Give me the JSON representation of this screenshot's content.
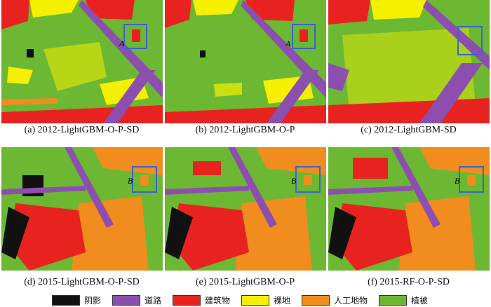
{
  "colors": {
    "shadow": "#111111",
    "road": "#8c4fb0",
    "building": "#e8231f",
    "bare": "#f5f000",
    "artificial": "#f08d1e",
    "vegetation": "#6cb832",
    "box": "#3b64c8"
  },
  "panels": [
    {
      "caption": "(a) 2012-LightGBM-O-P-SD",
      "marker": "A",
      "year": "2012"
    },
    {
      "caption": "(b) 2012-LightGBM-O-P",
      "marker": "A",
      "year": "2012"
    },
    {
      "caption": "(c) 2012-LightGBM-SD",
      "marker": "",
      "year": "2012"
    },
    {
      "caption": "(d) 2015-LightGBM-O-P-SD",
      "marker": "B",
      "year": "2015"
    },
    {
      "caption": "(e) 2015-LightGBM-O-P",
      "marker": "B",
      "year": "2015"
    },
    {
      "caption": "(f) 2015-RF-O-P-SD",
      "marker": "B",
      "year": "2015"
    }
  ],
  "legend": [
    {
      "label": "阴影",
      "color": "#111111"
    },
    {
      "label": "道路",
      "color": "#8c4fb0"
    },
    {
      "label": "建筑物",
      "color": "#e8231f"
    },
    {
      "label": "裸地",
      "color": "#f5f000"
    },
    {
      "label": "人工地物",
      "color": "#f08d1e"
    },
    {
      "label": "植被",
      "color": "#6cb832"
    }
  ]
}
